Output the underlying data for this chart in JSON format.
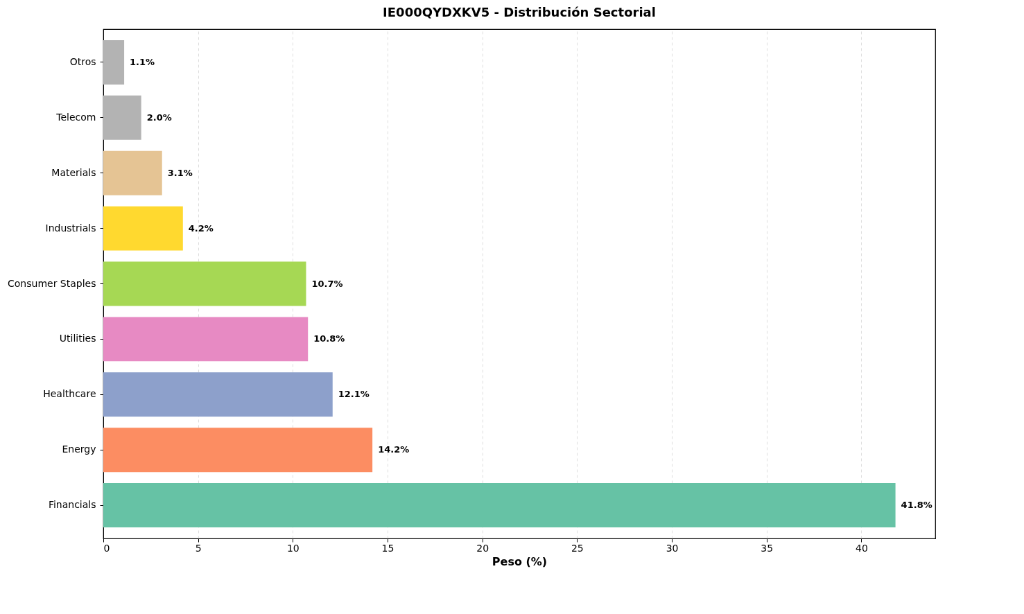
{
  "chart_data": {
    "type": "bar",
    "orientation": "horizontal",
    "title": "IE000QYDXKV5 - Distribución Sectorial",
    "xlabel": "Peso (%)",
    "categories": [
      "Otros",
      "Telecom",
      "Materials",
      "Industrials",
      "Consumer Staples",
      "Utilities",
      "Healthcare",
      "Energy",
      "Financials"
    ],
    "values": [
      1.1,
      2.0,
      3.1,
      4.2,
      10.7,
      10.8,
      12.1,
      14.2,
      41.8
    ],
    "colors": [
      "#b3b3b3",
      "#b3b3b3",
      "#e5c494",
      "#ffd92f",
      "#a6d854",
      "#e78ac3",
      "#8da0cb",
      "#fc8d62",
      "#66c2a5"
    ],
    "value_labels": [
      "1.1%",
      "2.0%",
      "3.1%",
      "4.2%",
      "10.7%",
      "10.8%",
      "12.1%",
      "14.2%",
      "41.8%"
    ],
    "xlim": [
      0,
      43.9
    ],
    "xticks": [
      0,
      5,
      10,
      15,
      20,
      25,
      30,
      35,
      40
    ],
    "grid": "x",
    "line_style": "dashed"
  }
}
